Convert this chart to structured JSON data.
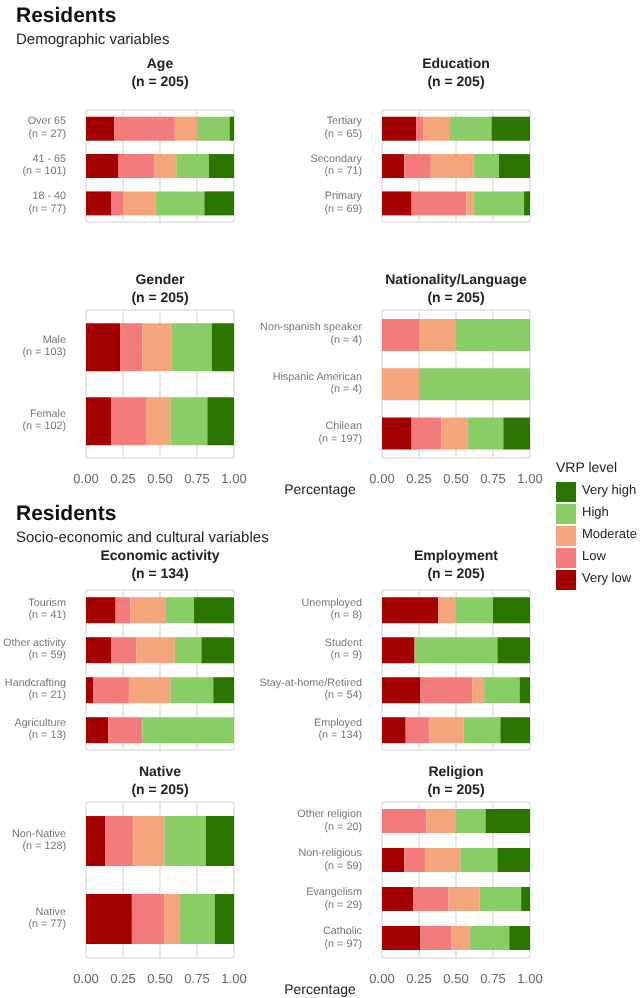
{
  "chart_data": [
    {
      "type": "other",
      "title": "Residents",
      "subtitle": "Demographic variables"
    },
    {
      "type": "bar",
      "orientation": "horizontal",
      "stacked": true,
      "title": "Age\n(n = 205)",
      "categories": [
        "Over 65\n(n = 27)",
        "41 - 65\n(n = 101)",
        "18 - 40\n(n = 77)"
      ],
      "xlim": [
        0,
        1
      ],
      "xticks": [
        0,
        0.25,
        0.5,
        0.75,
        1
      ],
      "tick_labels": "y",
      "grid": true,
      "series": [
        {
          "color": "#a50000",
          "values": [
            0.19,
            0.22,
            0.17
          ]
        },
        {
          "color": "#f47b7b",
          "values": [
            0.41,
            0.24,
            0.08
          ]
        },
        {
          "color": "#f4a57c",
          "values": [
            0.15,
            0.15,
            0.22
          ]
        },
        {
          "color": "#8acd66",
          "values": [
            0.22,
            0.22,
            0.33
          ]
        },
        {
          "color": "#2a7600",
          "values": [
            0.03,
            0.17,
            0.2
          ]
        }
      ]
    },
    {
      "type": "bar",
      "orientation": "horizontal",
      "stacked": true,
      "title": "Education\n(n = 205)",
      "categories": [
        "Tertiary\n(n = 65)",
        "Secondary\n(n = 71)",
        "Primary\n(n = 69)"
      ],
      "xlim": [
        0,
        1
      ],
      "xticks": [
        0,
        0.25,
        0.5,
        0.75,
        1
      ],
      "tick_labels": "y",
      "grid": true,
      "series": [
        {
          "color": "#a50000",
          "values": [
            0.23,
            0.15,
            0.2
          ]
        },
        {
          "color": "#f47b7b",
          "values": [
            0.05,
            0.18,
            0.37
          ]
        },
        {
          "color": "#f4a57c",
          "values": [
            0.18,
            0.29,
            0.05
          ]
        },
        {
          "color": "#8acd66",
          "values": [
            0.28,
            0.17,
            0.34
          ]
        },
        {
          "color": "#2a7600",
          "values": [
            0.26,
            0.21,
            0.04
          ]
        }
      ]
    },
    {
      "type": "bar",
      "orientation": "horizontal",
      "stacked": true,
      "title": "Gender\n(n = 205)",
      "xlabel": "Percentage",
      "categories": [
        "Male\n(n = 103)",
        "Female\n(n = 102)"
      ],
      "xlim": [
        0,
        1
      ],
      "xticks": [
        {
          "value": 0,
          "label": "0.00"
        },
        {
          "value": 0.25,
          "label": "0.25"
        },
        {
          "value": 0.5,
          "label": "0.50"
        },
        {
          "value": 0.75,
          "label": "0.75"
        },
        {
          "value": 1,
          "label": "1.00"
        }
      ],
      "grid": true,
      "series": [
        {
          "color": "#a50000",
          "values": [
            0.23,
            0.17
          ]
        },
        {
          "color": "#f47b7b",
          "values": [
            0.15,
            0.24
          ]
        },
        {
          "color": "#f4a57c",
          "values": [
            0.2,
            0.16
          ]
        },
        {
          "color": "#8acd66",
          "values": [
            0.27,
            0.25
          ]
        },
        {
          "color": "#2a7600",
          "values": [
            0.15,
            0.18
          ]
        }
      ]
    },
    {
      "type": "bar",
      "orientation": "horizontal",
      "stacked": true,
      "title": "Nationality/Language\n(n = 205)",
      "legend": "right",
      "legend_title": "VRP level",
      "categories": [
        "Non-spanish speaker\n(n = 4)",
        "Hispanic American\n(n = 4)",
        "Chilean\n(n = 197)"
      ],
      "xlim": [
        0,
        1
      ],
      "xticks": [
        {
          "value": 0,
          "label": "0.00"
        },
        {
          "value": 0.25,
          "label": "0.25"
        },
        {
          "value": 0.5,
          "label": "0.50"
        },
        {
          "value": 0.75,
          "label": "0.75"
        },
        {
          "value": 1,
          "label": "1.00"
        }
      ],
      "grid": true,
      "series": [
        {
          "name": "Very low",
          "color": "#a50000",
          "values": [
            0,
            0,
            0.2
          ]
        },
        {
          "name": "Low",
          "color": "#f47b7b",
          "values": [
            0.25,
            0,
            0.2
          ]
        },
        {
          "name": "Moderate",
          "color": "#f4a57c",
          "values": [
            0.25,
            0.25,
            0.18
          ]
        },
        {
          "name": "High",
          "color": "#8acd66",
          "values": [
            0.5,
            0.75,
            0.24
          ]
        },
        {
          "name": "Very high",
          "color": "#2a7600",
          "values": [
            0,
            0,
            0.18
          ]
        }
      ]
    },
    {
      "type": "other",
      "title": "Residents",
      "subtitle": "Socio-economic and cultural variables"
    },
    {
      "type": "bar",
      "orientation": "horizontal",
      "stacked": true,
      "title": "Economic activity\n(n = 134)",
      "categories": [
        "Tourism\n(n = 41)",
        "Other activity\n(n = 59)",
        "Handcrafting\n(n = 21)",
        "Agriculture\n(n = 13)"
      ],
      "xlim": [
        0,
        1
      ],
      "xticks": [
        0,
        0.25,
        0.5,
        0.75,
        1
      ],
      "tick_labels": "y",
      "grid": true,
      "series": [
        {
          "color": "#a50000",
          "values": [
            0.2,
            0.17,
            0.05,
            0.15
          ]
        },
        {
          "color": "#f47b7b",
          "values": [
            0.1,
            0.17,
            0.24,
            0.23
          ]
        },
        {
          "color": "#f4a57c",
          "values": [
            0.24,
            0.26,
            0.28,
            0
          ]
        },
        {
          "color": "#8acd66",
          "values": [
            0.19,
            0.18,
            0.29,
            0.62
          ]
        },
        {
          "color": "#2a7600",
          "values": [
            0.27,
            0.22,
            0.14,
            0
          ]
        }
      ]
    },
    {
      "type": "bar",
      "orientation": "horizontal",
      "stacked": true,
      "title": "Employment\n(n = 205)",
      "categories": [
        "Unemployed\n(n = 8)",
        "Student\n(n = 9)",
        "Stay-at-home/Retired\n(n = 54)",
        "Employed\n(n = 134)"
      ],
      "xlim": [
        0,
        1
      ],
      "xticks": [
        0,
        0.25,
        0.5,
        0.75,
        1
      ],
      "tick_labels": "y",
      "grid": true,
      "series": [
        {
          "color": "#a50000",
          "values": [
            0.38,
            0.22,
            0.26,
            0.16
          ]
        },
        {
          "color": "#f47b7b",
          "values": [
            0,
            0,
            0.35,
            0.16
          ]
        },
        {
          "color": "#f4a57c",
          "values": [
            0.12,
            0,
            0.08,
            0.23
          ]
        },
        {
          "color": "#8acd66",
          "values": [
            0.25,
            0.56,
            0.24,
            0.25
          ]
        },
        {
          "color": "#2a7600",
          "values": [
            0.25,
            0.22,
            0.07,
            0.2
          ]
        }
      ]
    },
    {
      "type": "bar",
      "orientation": "horizontal",
      "stacked": true,
      "title": "Native\n(n = 205)",
      "xlabel": "Percentage",
      "categories": [
        "Non-Native\n(n = 128)",
        "Native\n(n = 77)"
      ],
      "xlim": [
        0,
        1
      ],
      "xticks": [
        {
          "value": 0,
          "label": "0.00"
        },
        {
          "value": 0.25,
          "label": "0.25"
        },
        {
          "value": 0.5,
          "label": "0.50"
        },
        {
          "value": 0.75,
          "label": "0.75"
        },
        {
          "value": 1,
          "label": "1.00"
        }
      ],
      "grid": true,
      "series": [
        {
          "color": "#a50000",
          "values": [
            0.13,
            0.31
          ]
        },
        {
          "color": "#f47b7b",
          "values": [
            0.19,
            0.22
          ]
        },
        {
          "color": "#f4a57c",
          "values": [
            0.21,
            0.1
          ]
        },
        {
          "color": "#8acd66",
          "values": [
            0.28,
            0.24
          ]
        },
        {
          "color": "#2a7600",
          "values": [
            0.19,
            0.13
          ]
        }
      ]
    },
    {
      "type": "bar",
      "orientation": "horizontal",
      "stacked": true,
      "title": "Religion\n(n = 205)",
      "categories": [
        "Other religion\n(n = 20)",
        "Non-religious\n(n = 59)",
        "Evangelism\n(n = 29)",
        "Catholic\n(n = 97)"
      ],
      "xlim": [
        0,
        1
      ],
      "xticks": [
        {
          "value": 0,
          "label": "0.00"
        },
        {
          "value": 0.25,
          "label": "0.25"
        },
        {
          "value": 0.5,
          "label": "0.50"
        },
        {
          "value": 0.75,
          "label": "0.75"
        },
        {
          "value": 1,
          "label": "1.00"
        }
      ],
      "grid": true,
      "series": [
        {
          "color": "#a50000",
          "values": [
            0,
            0.15,
            0.21,
            0.26
          ]
        },
        {
          "color": "#f47b7b",
          "values": [
            0.3,
            0.14,
            0.24,
            0.21
          ]
        },
        {
          "color": "#f4a57c",
          "values": [
            0.2,
            0.24,
            0.21,
            0.12
          ]
        },
        {
          "color": "#8acd66",
          "values": [
            0.2,
            0.25,
            0.28,
            0.27
          ]
        },
        {
          "color": "#2a7600",
          "values": [
            0.3,
            0.22,
            0.06,
            0.14
          ]
        }
      ]
    }
  ]
}
